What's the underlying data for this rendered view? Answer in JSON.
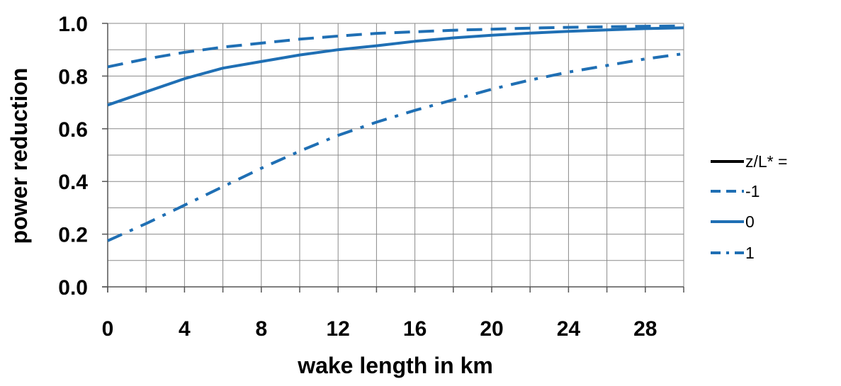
{
  "chart_data": {
    "type": "line",
    "title": "",
    "xlabel": "wake length in km",
    "ylabel": "power reduction",
    "xlim": [
      0,
      30
    ],
    "ylim": [
      0,
      1.0
    ],
    "x_ticks": [
      0,
      4,
      8,
      12,
      16,
      20,
      24,
      28
    ],
    "x_tick_labels": [
      "0",
      "4",
      "8",
      "12",
      "16",
      "20",
      "24",
      "28"
    ],
    "y_ticks": [
      0.0,
      0.2,
      0.4,
      0.6,
      0.8,
      1.0
    ],
    "y_tick_labels": [
      "0.0",
      "0.2",
      "0.4",
      "0.6",
      "0.8",
      "1.0"
    ],
    "minor_grid_x_step": 2,
    "minor_grid_y_step": 0.1,
    "grid": true,
    "legend_position": "right",
    "legend_header": "z/L* =",
    "x": [
      0,
      2,
      4,
      6,
      8,
      10,
      12,
      14,
      16,
      18,
      20,
      22,
      24,
      26,
      28,
      30
    ],
    "series": [
      {
        "name": "-1",
        "style": "dashed",
        "color": "#1f6fb4",
        "values": [
          0.835,
          0.865,
          0.89,
          0.91,
          0.925,
          0.94,
          0.952,
          0.962,
          0.968,
          0.974,
          0.978,
          0.982,
          0.985,
          0.987,
          0.989,
          0.99
        ]
      },
      {
        "name": "0",
        "style": "solid",
        "color": "#1f6fb4",
        "values": [
          0.69,
          0.74,
          0.79,
          0.83,
          0.855,
          0.88,
          0.9,
          0.915,
          0.932,
          0.945,
          0.955,
          0.963,
          0.97,
          0.975,
          0.98,
          0.983
        ]
      },
      {
        "name": "1",
        "style": "dashdot",
        "color": "#1f6fb4",
        "values": [
          0.175,
          0.24,
          0.31,
          0.38,
          0.45,
          0.515,
          0.575,
          0.625,
          0.67,
          0.71,
          0.75,
          0.785,
          0.815,
          0.84,
          0.865,
          0.885
        ]
      }
    ]
  }
}
